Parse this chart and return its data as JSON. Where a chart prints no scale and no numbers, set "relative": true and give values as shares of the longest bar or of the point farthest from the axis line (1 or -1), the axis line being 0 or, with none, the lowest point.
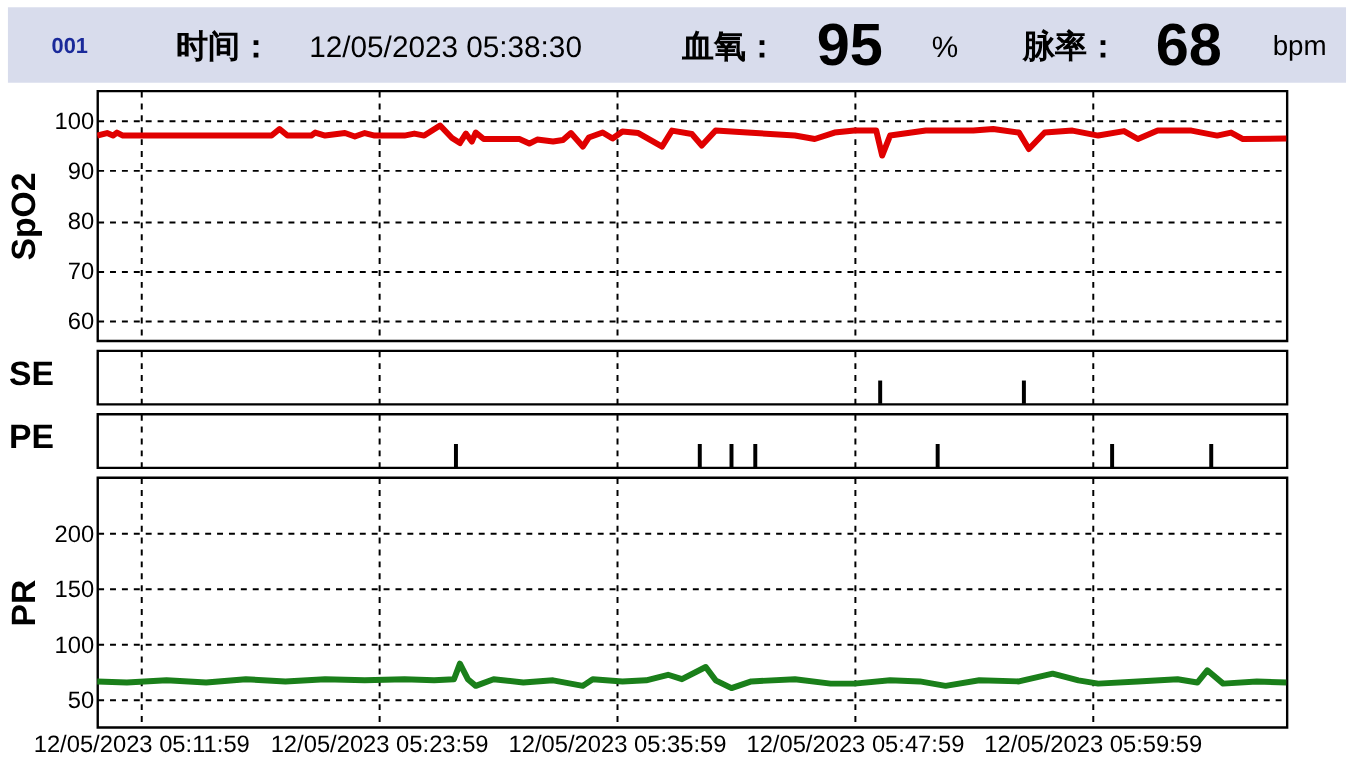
{
  "chart_data": [
    {
      "type": "other",
      "annotations": [
        "001",
        "时间：",
        "12/05/2023 05:38:30",
        "血氧：",
        "95",
        "%",
        "脉率：",
        "68",
        "bpm"
      ]
    },
    {
      "type": "line",
      "ylabel": "SpO2",
      "xlim": [
        "2023-12-05T05:09:47",
        "2023-12-05T06:09:47"
      ],
      "ylim": [
        56,
        106
      ],
      "yticks": [
        60,
        70,
        80,
        90,
        100
      ],
      "xticks": [
        {
          "value": "2023-12-05T05:11:59",
          "label": null
        },
        {
          "value": "2023-12-05T05:23:59",
          "label": null
        },
        {
          "value": "2023-12-05T05:35:59",
          "label": null
        },
        {
          "value": "2023-12-05T05:47:59",
          "label": null
        },
        {
          "value": "2023-12-05T05:59:59",
          "label": null
        }
      ],
      "tick_labels": "y",
      "grid": true,
      "series": [
        {
          "color": "#e00000",
          "x": [
            "2023-12-05T05:09:47",
            "2023-12-05T05:10:17",
            "2023-12-05T05:10:35",
            "2023-12-05T05:10:47",
            "2023-12-05T05:11:05",
            "2023-12-05T05:15:17",
            "2023-12-05T05:17:17",
            "2023-12-05T05:18:35",
            "2023-12-05T05:18:59",
            "2023-12-05T05:19:23",
            "2023-12-05T05:20:35",
            "2023-12-05T05:20:47",
            "2023-12-05T05:21:17",
            "2023-12-05T05:22:17",
            "2023-12-05T05:22:47",
            "2023-12-05T05:23:17",
            "2023-12-05T05:23:47",
            "2023-12-05T05:25:17",
            "2023-12-05T05:25:47",
            "2023-12-05T05:26:17",
            "2023-12-05T05:27:05",
            "2023-12-05T05:27:41",
            "2023-12-05T05:28:05",
            "2023-12-05T05:28:23",
            "2023-12-05T05:28:41",
            "2023-12-05T05:28:53",
            "2023-12-05T05:29:17",
            "2023-12-05T05:31:05",
            "2023-12-05T05:31:35",
            "2023-12-05T05:31:59",
            "2023-12-05T05:32:47",
            "2023-12-05T05:33:17",
            "2023-12-05T05:33:41",
            "2023-12-05T05:34:17",
            "2023-12-05T05:34:35",
            "2023-12-05T05:35:17",
            "2023-12-05T05:35:47",
            "2023-12-05T05:36:17",
            "2023-12-05T05:37:05",
            "2023-12-05T05:38:17",
            "2023-12-05T05:38:47",
            "2023-12-05T05:39:47",
            "2023-12-05T05:40:17",
            "2023-12-05T05:40:59",
            "2023-12-05T05:42:35",
            "2023-12-05T05:44:59",
            "2023-12-05T05:45:59",
            "2023-12-05T05:46:59",
            "2023-12-05T05:47:59",
            "2023-12-05T05:49:05",
            "2023-12-05T05:49:23",
            "2023-12-05T05:49:47",
            "2023-12-05T05:51:35",
            "2023-12-05T05:53:59",
            "2023-12-05T05:54:59",
            "2023-12-05T05:56:17",
            "2023-12-05T05:56:47",
            "2023-12-05T05:57:35",
            "2023-12-05T05:58:59",
            "2023-12-05T06:00:17",
            "2023-12-05T06:01:35",
            "2023-12-05T06:02:17",
            "2023-12-05T06:03:17",
            "2023-12-05T06:04:59",
            "2023-12-05T06:06:17",
            "2023-12-05T06:06:59",
            "2023-12-05T06:07:35",
            "2023-12-05T06:09:47"
          ],
          "values": [
            97,
            97.5,
            97,
            97.6,
            97,
            97,
            97,
            97,
            98.3,
            97,
            97,
            97.6,
            97,
            97.5,
            96.8,
            97.5,
            97,
            97,
            97.4,
            97,
            99,
            96.5,
            95.5,
            97.4,
            95.8,
            97.6,
            96.3,
            96.3,
            95.4,
            96.2,
            95.8,
            96.1,
            97.5,
            94.8,
            96.6,
            97.6,
            96.4,
            97.8,
            97.5,
            94.8,
            98,
            97.3,
            95,
            98,
            97.6,
            97,
            96.3,
            97.6,
            98,
            98,
            93,
            97,
            98,
            98,
            98.3,
            97.6,
            94.3,
            97.6,
            98,
            97,
            97.9,
            96.3,
            98,
            98,
            97,
            97.6,
            96.3,
            96.4
          ]
        }
      ]
    },
    {
      "type": "bar",
      "ylabel": "SE",
      "relative": true,
      "xlim": [
        "2023-12-05T05:09:47",
        "2023-12-05T06:09:47"
      ],
      "xticks": [
        {
          "value": "2023-12-05T05:11:59",
          "label": null
        },
        {
          "value": "2023-12-05T05:23:59",
          "label": null
        },
        {
          "value": "2023-12-05T05:35:59",
          "label": null
        },
        {
          "value": "2023-12-05T05:47:59",
          "label": null
        },
        {
          "value": "2023-12-05T05:59:59",
          "label": null
        }
      ],
      "tick_labels": false,
      "grid": "x",
      "series": [
        {
          "color": "#000000",
          "x": [
            "2023-12-05T05:49:17",
            "2023-12-05T05:56:32"
          ],
          "values": [
            1,
            1
          ]
        }
      ]
    },
    {
      "type": "bar",
      "ylabel": "PE",
      "relative": true,
      "xlim": [
        "2023-12-05T05:09:47",
        "2023-12-05T06:09:47"
      ],
      "xticks": [
        {
          "value": "2023-12-05T05:11:59",
          "label": null
        },
        {
          "value": "2023-12-05T05:23:59",
          "label": null
        },
        {
          "value": "2023-12-05T05:35:59",
          "label": null
        },
        {
          "value": "2023-12-05T05:47:59",
          "label": null
        },
        {
          "value": "2023-12-05T05:59:59",
          "label": null
        }
      ],
      "tick_labels": false,
      "grid": "x",
      "series": [
        {
          "color": "#000000",
          "x": [
            "2023-12-05T05:27:53",
            "2023-12-05T05:40:11",
            "2023-12-05T05:41:47",
            "2023-12-05T05:42:59",
            "2023-12-05T05:52:11",
            "2023-12-05T06:00:59",
            "2023-12-05T06:05:59"
          ],
          "values": [
            1,
            1,
            1,
            1,
            1,
            1,
            1
          ]
        }
      ]
    },
    {
      "type": "line",
      "ylabel": "PR",
      "xlim": [
        "2023-12-05T05:09:47",
        "2023-12-05T06:09:47"
      ],
      "ylim": [
        25,
        250
      ],
      "yticks": [
        50,
        100,
        150,
        200
      ],
      "xticks": [
        {
          "value": "2023-12-05T05:11:59",
          "label": "12/05/2023 05:11:59"
        },
        {
          "value": "2023-12-05T05:23:59",
          "label": "12/05/2023 05:23:59"
        },
        {
          "value": "2023-12-05T05:35:59",
          "label": "12/05/2023 05:35:59"
        },
        {
          "value": "2023-12-05T05:47:59",
          "label": "12/05/2023 05:47:59"
        },
        {
          "value": "2023-12-05T05:59:59",
          "label": "12/05/2023 05:59:59"
        }
      ],
      "grid": true,
      "series": [
        {
          "color": "#1a7f1a",
          "x": [
            "2023-12-05T05:09:47",
            "2023-12-05T05:11:17",
            "2023-12-05T05:13:17",
            "2023-12-05T05:15:17",
            "2023-12-05T05:17:17",
            "2023-12-05T05:19:17",
            "2023-12-05T05:21:17",
            "2023-12-05T05:23:17",
            "2023-12-05T05:25:17",
            "2023-12-05T05:26:47",
            "2023-12-05T05:27:47",
            "2023-12-05T05:28:05",
            "2023-12-05T05:28:29",
            "2023-12-05T05:28:53",
            "2023-12-05T05:29:47",
            "2023-12-05T05:31:17",
            "2023-12-05T05:32:47",
            "2023-12-05T05:34:17",
            "2023-12-05T05:34:47",
            "2023-12-05T05:36:17",
            "2023-12-05T05:37:29",
            "2023-12-05T05:38:35",
            "2023-12-05T05:39:17",
            "2023-12-05T05:40:29",
            "2023-12-05T05:40:59",
            "2023-12-05T05:41:47",
            "2023-12-05T05:42:47",
            "2023-12-05T05:44:59",
            "2023-12-05T05:46:47",
            "2023-12-05T05:47:59",
            "2023-12-05T05:49:47",
            "2023-12-05T05:51:17",
            "2023-12-05T05:52:35",
            "2023-12-05T05:54:17",
            "2023-12-05T05:56:17",
            "2023-12-05T05:57:59",
            "2023-12-05T05:59:17",
            "2023-12-05T06:00:17",
            "2023-12-05T06:02:17",
            "2023-12-05T06:04:17",
            "2023-12-05T06:05:17",
            "2023-12-05T06:05:47",
            "2023-12-05T06:06:35",
            "2023-12-05T06:08:17",
            "2023-12-05T06:09:47"
          ],
          "values": [
            66,
            65,
            67,
            65,
            68,
            66,
            68,
            67,
            68,
            67,
            68,
            82,
            68,
            62,
            68,
            65,
            67,
            62,
            68,
            66,
            67,
            72,
            68,
            79,
            67,
            60,
            66,
            68,
            64,
            64,
            67,
            66,
            62,
            67,
            66,
            73,
            67,
            64,
            66,
            68,
            65,
            76,
            64,
            66,
            65
          ]
        }
      ]
    }
  ]
}
